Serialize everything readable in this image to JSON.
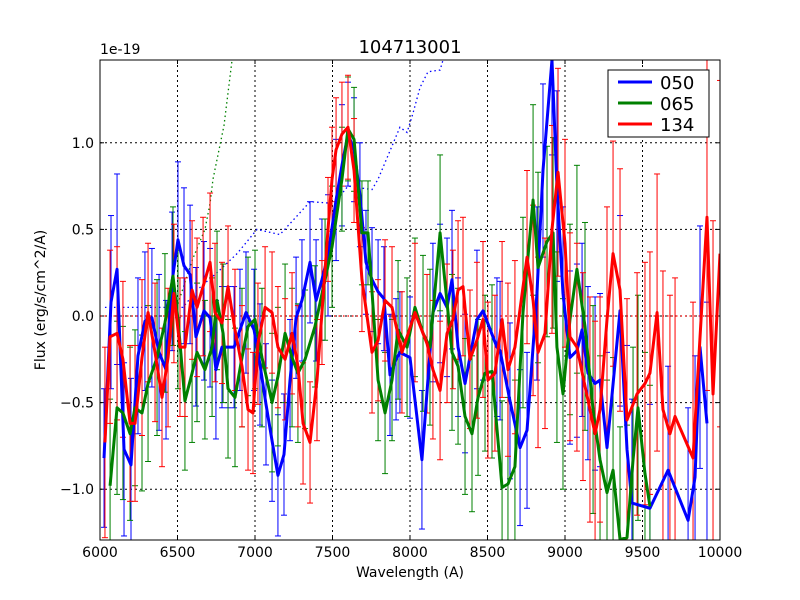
{
  "chart_data": {
    "type": "line",
    "title": "104713001",
    "xlabel": "Wavelength (A)",
    "ylabel": "Flux (erg/s/cm^2/A)",
    "y_scale_label": "1e-19",
    "xlim": [
      6000,
      10000
    ],
    "ylim": [
      -1.29,
      1.48
    ],
    "xticks": [
      6000,
      6500,
      7000,
      7500,
      8000,
      8500,
      9000,
      9500,
      10000
    ],
    "xtick_labels": [
      "6000",
      "6500",
      "7000",
      "7500",
      "8000",
      "8500",
      "9000",
      "9500",
      "10000"
    ],
    "yticks": [
      -1.0,
      -0.5,
      0.0,
      0.5,
      1.0
    ],
    "ytick_labels": [
      "−1.0",
      "−0.5",
      "0.0",
      "0.5",
      "1.0"
    ],
    "grid": true,
    "legend_position": "top-right",
    "series": [
      {
        "name": "050",
        "color": "#0000ff",
        "x": [
          6026,
          6071,
          6110,
          6155,
          6200,
          6245,
          6290,
          6335,
          6381,
          6426,
          6465,
          6503,
          6542,
          6581,
          6619,
          6671,
          6710,
          6748,
          6787,
          6826,
          6865,
          6903,
          6942,
          6994,
          7032,
          7071,
          7110,
          7148,
          7187,
          7226,
          7265,
          7303,
          7355,
          7394,
          7432,
          7471,
          7523,
          7561,
          7600,
          7639,
          7677,
          7716,
          7755,
          7794,
          7832,
          7871,
          7910,
          7935,
          8000,
          8077,
          8148,
          8194,
          8239,
          8271,
          8310,
          8355,
          8432,
          8471,
          8561,
          8581,
          8645,
          8710,
          8755,
          8819,
          8858,
          8916,
          8948,
          8987,
          9032,
          9077,
          9110,
          9148,
          9194,
          9226,
          9271,
          9355,
          9400,
          9432,
          9548,
          9665,
          9794,
          9839,
          9871,
          9916
        ],
        "y": [
          -0.82,
          0.08,
          0.27,
          -0.77,
          -0.86,
          -0.23,
          -0.03,
          -0.01,
          -0.21,
          -0.31,
          0.2,
          0.44,
          0.29,
          0.24,
          -0.12,
          0.03,
          -0.01,
          -0.31,
          -0.18,
          -0.18,
          -0.18,
          -0.08,
          0.02,
          -0.08,
          -0.28,
          -0.51,
          -0.72,
          -0.92,
          -0.8,
          -0.37,
          -0.01,
          0.09,
          0.31,
          0.09,
          0.21,
          0.35,
          0.67,
          0.87,
          1.05,
          0.96,
          0.7,
          0.31,
          0.21,
          0.14,
          0.1,
          -0.34,
          -0.25,
          -0.21,
          -0.24,
          -0.83,
          0.02,
          0.13,
          0.05,
          0.21,
          -0.18,
          -0.39,
          -0.02,
          0.03,
          -0.18,
          -0.2,
          -0.49,
          -0.76,
          -0.66,
          0.13,
          0.84,
          1.48,
          0.75,
          0.13,
          -0.24,
          -0.2,
          -0.08,
          -0.33,
          -0.39,
          -0.37,
          -0.76,
          0.03,
          -0.77,
          -1.08,
          -1.11,
          -0.89,
          -1.18,
          -0.93,
          -0.18,
          -0.62
        ],
        "yerr": [
          0.4,
          0.5,
          0.55,
          0.5,
          0.5,
          0.45,
          0.4,
          0.4,
          0.45,
          0.4,
          0.4,
          0.45,
          0.45,
          0.4,
          0.4,
          0.4,
          0.4,
          0.4,
          0.35,
          0.35,
          0.35,
          0.35,
          0.35,
          0.35,
          0.35,
          0.35,
          0.35,
          0.35,
          0.35,
          0.35,
          0.35,
          0.35,
          0.35,
          0.35,
          0.35,
          0.35,
          0.35,
          0.35,
          0.3,
          0.3,
          0.3,
          0.3,
          0.3,
          0.3,
          0.3,
          0.35,
          0.35,
          0.35,
          0.35,
          0.4,
          0.4,
          0.4,
          0.4,
          0.4,
          0.4,
          0.4,
          0.4,
          0.4,
          0.4,
          0.4,
          0.45,
          0.45,
          0.45,
          0.5,
          0.5,
          0.55,
          0.55,
          0.5,
          0.5,
          0.5,
          0.5,
          0.5,
          0.5,
          0.5,
          0.55,
          0.55,
          0.6,
          0.6,
          0.6,
          0.6,
          0.65,
          0.7,
          0.7,
          0.7
        ]
      },
      {
        "name": "065",
        "color": "#008000",
        "x": [
          6065,
          6110,
          6148,
          6194,
          6226,
          6271,
          6310,
          6368,
          6419,
          6471,
          6503,
          6548,
          6594,
          6626,
          6677,
          6723,
          6755,
          6794,
          6826,
          6871,
          6916,
          6955,
          7000,
          7045,
          7110,
          7148,
          7194,
          7239,
          7277,
          7323,
          7387,
          7452,
          7497,
          7561,
          7600,
          7639,
          7690,
          7729,
          7794,
          7839,
          7884,
          7923,
          7981,
          8032,
          8084,
          8129,
          8194,
          8271,
          8310,
          8355,
          8400,
          8439,
          8484,
          8529,
          8594,
          8632,
          8677,
          8729,
          8794,
          8826,
          8884,
          8923,
          8948,
          8987,
          9032,
          9077,
          9129,
          9181,
          9226,
          9271,
          9310,
          9355,
          9400,
          9439,
          9471,
          9516,
          9548
        ],
        "y": [
          -0.98,
          -0.53,
          -0.56,
          -0.68,
          -0.53,
          -0.56,
          -0.39,
          -0.24,
          -0.04,
          0.23,
          -0.02,
          -0.49,
          -0.33,
          -0.21,
          -0.31,
          -0.18,
          0.09,
          -0.1,
          -0.42,
          -0.47,
          -0.24,
          -0.06,
          -0.02,
          -0.24,
          -0.5,
          -0.35,
          -0.1,
          -0.24,
          -0.33,
          -0.25,
          -0.06,
          0.21,
          0.4,
          0.79,
          1.08,
          1.02,
          0.48,
          0.48,
          -0.37,
          -0.56,
          -0.37,
          -0.08,
          -0.18,
          0.05,
          -0.1,
          -0.18,
          0.48,
          -0.21,
          -0.29,
          -0.58,
          -0.68,
          -0.47,
          -0.33,
          -0.32,
          -0.99,
          -0.97,
          -0.87,
          0.02,
          0.67,
          0.28,
          0.43,
          0.48,
          -0.18,
          -0.45,
          -0.02,
          0.27,
          -0.06,
          -0.54,
          -0.83,
          -1.02,
          -0.89,
          -1.29,
          -1.28,
          -0.83,
          -0.53,
          -0.91,
          -1.1
        ],
        "yerr": [
          0.5,
          0.5,
          0.5,
          0.5,
          0.45,
          0.45,
          0.45,
          0.45,
          0.4,
          0.4,
          0.4,
          0.4,
          0.4,
          0.4,
          0.4,
          0.4,
          0.4,
          0.4,
          0.4,
          0.4,
          0.4,
          0.4,
          0.4,
          0.4,
          0.4,
          0.4,
          0.4,
          0.4,
          0.4,
          0.4,
          0.35,
          0.35,
          0.35,
          0.3,
          0.3,
          0.3,
          0.3,
          0.3,
          0.35,
          0.35,
          0.35,
          0.4,
          0.4,
          0.4,
          0.45,
          0.45,
          0.45,
          0.45,
          0.45,
          0.45,
          0.45,
          0.45,
          0.45,
          0.5,
          0.5,
          0.5,
          0.5,
          0.55,
          0.55,
          0.55,
          0.55,
          0.55,
          0.55,
          0.55,
          0.55,
          0.6,
          0.6,
          0.6,
          0.6,
          0.65,
          0.65,
          0.65,
          0.65,
          0.65,
          0.65,
          0.7,
          0.7
        ]
      },
      {
        "name": "134",
        "color": "#ff0000",
        "x": [
          6032,
          6065,
          6110,
          6148,
          6194,
          6226,
          6271,
          6310,
          6355,
          6400,
          6439,
          6477,
          6516,
          6548,
          6594,
          6626,
          6665,
          6710,
          6742,
          6787,
          6826,
          6871,
          6916,
          6955,
          6987,
          7019,
          7065,
          7110,
          7148,
          7194,
          7239,
          7277,
          7310,
          7355,
          7400,
          7432,
          7471,
          7497,
          7523,
          7561,
          7600,
          7639,
          7690,
          7755,
          7794,
          7839,
          7884,
          7948,
          8032,
          8110,
          8148,
          8194,
          8239,
          8277,
          8310,
          8342,
          8387,
          8432,
          8471,
          8503,
          8548,
          8594,
          8632,
          8677,
          8755,
          8794,
          8826,
          8871,
          8916,
          8955,
          9000,
          9032,
          9077,
          9116,
          9161,
          9194,
          9226,
          9271,
          9310,
          9355,
          9400,
          9465,
          9516,
          9548,
          9594,
          9632,
          9677,
          9710,
          9826,
          9916,
          9955,
          10000
        ],
        "y": [
          -0.73,
          -0.12,
          -0.1,
          -0.25,
          -0.62,
          -0.62,
          -0.24,
          0.02,
          -0.21,
          -0.47,
          -0.24,
          0.13,
          -0.18,
          -0.18,
          0.15,
          0.05,
          0.17,
          0.31,
          0.02,
          -0.04,
          0.17,
          -0.08,
          -0.29,
          -0.54,
          -0.56,
          -0.16,
          0.05,
          0.02,
          -0.18,
          -0.25,
          -0.1,
          -0.29,
          -0.62,
          -0.73,
          -0.37,
          0.02,
          0.5,
          0.79,
          0.96,
          1.05,
          1.09,
          0.84,
          0.21,
          -0.21,
          -0.14,
          0.09,
          0.05,
          -0.21,
          0.02,
          -0.16,
          -0.31,
          -0.43,
          -0.1,
          -0.02,
          0.15,
          0.17,
          -0.25,
          -0.14,
          -0.02,
          -0.37,
          -0.33,
          -0.02,
          -0.31,
          -0.18,
          0.34,
          0.09,
          -0.21,
          -0.1,
          0.5,
          0.83,
          0.42,
          -0.12,
          -0.18,
          -0.35,
          -0.54,
          -0.68,
          -0.54,
          -0.02,
          0.36,
          0.15,
          -0.6,
          -0.45,
          -0.39,
          -0.33,
          0.02,
          -0.54,
          -0.68,
          -0.58,
          -0.82,
          0.57,
          -0.45,
          0.36
        ],
        "yerr": [
          0.55,
          0.5,
          0.5,
          0.45,
          0.45,
          0.45,
          0.45,
          0.4,
          0.4,
          0.4,
          0.4,
          0.4,
          0.4,
          0.4,
          0.4,
          0.4,
          0.4,
          0.4,
          0.4,
          0.35,
          0.35,
          0.35,
          0.35,
          0.35,
          0.35,
          0.35,
          0.35,
          0.35,
          0.35,
          0.35,
          0.35,
          0.35,
          0.35,
          0.35,
          0.35,
          0.3,
          0.3,
          0.3,
          0.3,
          0.3,
          0.3,
          0.3,
          0.3,
          0.35,
          0.35,
          0.35,
          0.35,
          0.35,
          0.4,
          0.4,
          0.4,
          0.4,
          0.4,
          0.4,
          0.4,
          0.4,
          0.4,
          0.45,
          0.45,
          0.45,
          0.45,
          0.45,
          0.5,
          0.5,
          0.5,
          0.55,
          0.55,
          0.55,
          0.6,
          0.6,
          0.6,
          0.6,
          0.6,
          0.6,
          0.65,
          0.65,
          0.65,
          0.65,
          0.65,
          0.7,
          0.7,
          0.7,
          0.7,
          0.7,
          0.8,
          0.8,
          0.8,
          0.8,
          0.9,
          1.0,
          1.0,
          1.0
        ]
      }
    ],
    "dotted_series": [
      {
        "color": "#0000ff",
        "x": [
          6032,
          6535,
          6626,
          6755,
          6884,
          7013,
          7161,
          7355,
          7510,
          7600,
          7755,
          7794,
          7935,
          7981,
          8019,
          8065,
          8116,
          8194,
          8213
        ],
        "y": [
          0.05,
          0.05,
          0.15,
          0.25,
          0.36,
          0.5,
          0.47,
          0.66,
          0.65,
          0.75,
          0.73,
          0.79,
          1.09,
          1.06,
          1.17,
          1.32,
          1.41,
          1.42,
          1.48
        ]
      },
      {
        "color": "#008000",
        "x": [
          6503,
          6594,
          6677,
          6710,
          6729,
          6800,
          6852
        ],
        "y": [
          0.07,
          0.32,
          0.5,
          0.65,
          0.79,
          1.1,
          1.48
        ]
      },
      {
        "color": "#ff0000",
        "x": [
          6000,
          10000
        ],
        "y": [
          0.0,
          0.0
        ]
      }
    ]
  }
}
